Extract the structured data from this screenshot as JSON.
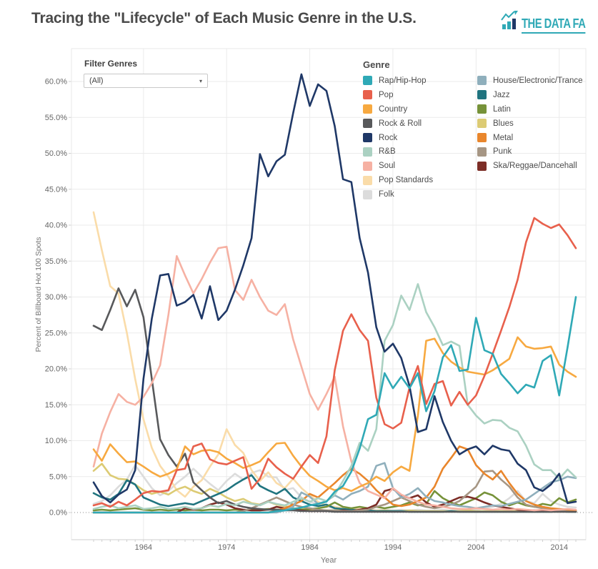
{
  "header": {
    "title": "Tracing the \"Lifecycle\" of Each Music Genre in the U.S.",
    "logo": {
      "text": "THE DATA FA",
      "color": "#2fa9b6"
    }
  },
  "filter": {
    "label": "Filter Genres",
    "value": "(All)",
    "caret": "▾"
  },
  "legend": {
    "title": "Genre",
    "columns": [
      [
        "Rap/Hip-Hop",
        "Pop",
        "Country",
        "Rock & Roll",
        "Rock",
        "R&B",
        "Soul",
        "Pop Standards",
        "Folk"
      ],
      [
        "House/Electronic/Trance",
        "Jazz",
        "Latin",
        "Blues",
        "Metal",
        "Punk",
        "Ska/Reggae/Dancehall"
      ]
    ]
  },
  "axes": {
    "y": {
      "title": "Percent of Billboard Hot 100 Spots",
      "ticks": [
        "0.0%",
        "5.0%",
        "10.0%",
        "15.0%",
        "20.0%",
        "25.0%",
        "30.0%",
        "35.0%",
        "40.0%",
        "45.0%",
        "50.0%",
        "55.0%",
        "60.0%"
      ],
      "min": 0,
      "max": 60,
      "step": 5
    },
    "x": {
      "title": "Year",
      "ticks": [
        1964,
        1974,
        1984,
        1994,
        2004,
        2014
      ],
      "range": [
        1958,
        2016
      ]
    }
  },
  "chart_data": {
    "type": "line",
    "title": "Tracing the \"Lifecycle\" of Each Music Genre in the U.S.",
    "xlabel": "Year",
    "ylabel": "Percent of Billboard Hot 100 Spots",
    "ylim": [
      0,
      62
    ],
    "grid": true,
    "legend_position": "top-right",
    "x": [
      1958,
      1959,
      1960,
      1961,
      1962,
      1963,
      1964,
      1965,
      1966,
      1967,
      1968,
      1969,
      1970,
      1971,
      1972,
      1973,
      1974,
      1975,
      1976,
      1977,
      1978,
      1979,
      1980,
      1981,
      1982,
      1983,
      1984,
      1985,
      1986,
      1987,
      1988,
      1989,
      1990,
      1991,
      1992,
      1993,
      1994,
      1995,
      1996,
      1997,
      1998,
      1999,
      2000,
      2001,
      2002,
      2003,
      2004,
      2005,
      2006,
      2007,
      2008,
      2009,
      2010,
      2011,
      2012,
      2013,
      2014,
      2015,
      2016
    ],
    "series": [
      {
        "name": "Rap/Hip-Hop",
        "color": "#2fa9b6",
        "values": [
          0,
          0,
          0,
          0,
          0,
          0,
          0,
          0,
          0,
          0,
          0,
          0,
          0,
          0,
          0,
          0,
          0,
          0,
          0,
          0,
          0,
          0,
          0.2,
          0.3,
          0.5,
          0.7,
          1,
          1.2,
          1.5,
          2.9,
          3.7,
          5.7,
          8.9,
          13,
          13.6,
          19.4,
          17.3,
          18.9,
          17.3,
          19.4,
          14.1,
          16.9,
          21.6,
          23.3,
          19.7,
          19.9,
          27.1,
          22.6,
          22.1,
          19.3,
          18,
          16.6,
          17.8,
          17.4,
          21.1,
          21.9,
          16.3,
          23,
          30
        ]
      },
      {
        "name": "Pop",
        "color": "#e8604c",
        "values": [
          1,
          1.3,
          0.8,
          1.5,
          1,
          1.8,
          2.7,
          3,
          2.9,
          3.1,
          5.9,
          6.1,
          9.2,
          9.6,
          7.4,
          6.9,
          6.7,
          7.2,
          7.7,
          3.3,
          4.7,
          7.5,
          6.3,
          5.4,
          4.7,
          6.4,
          8,
          6.9,
          10.6,
          19.8,
          25.3,
          27.6,
          25.4,
          23.9,
          16,
          12.3,
          11.7,
          12.5,
          17.4,
          20.4,
          15.1,
          17.9,
          18.3,
          14.9,
          16.8,
          15,
          16.3,
          19,
          22.1,
          25.3,
          28.6,
          32.4,
          37.6,
          41,
          40.2,
          39.6,
          40.1,
          38.6,
          36.8
        ]
      },
      {
        "name": "Country",
        "color": "#f7a940",
        "values": [
          8.8,
          7.2,
          9.5,
          8.2,
          7,
          7.1,
          6.4,
          5.6,
          5,
          5.4,
          6,
          9.2,
          8.1,
          8.6,
          8.7,
          8.4,
          7.5,
          6.9,
          6.2,
          6.6,
          7.1,
          8.4,
          9.6,
          9.7,
          7.9,
          6.4,
          5.1,
          4.4,
          3.6,
          3.1,
          3.4,
          3,
          3.6,
          4.1,
          5,
          4.4,
          5.6,
          6.4,
          5.8,
          13.5,
          23.9,
          24.2,
          22.2,
          21,
          20.2,
          19.6,
          19.4,
          19.2,
          19.8,
          20.6,
          21.4,
          24.4,
          23.1,
          22.8,
          22.9,
          23.1,
          20.6,
          19.6,
          18.9
        ]
      },
      {
        "name": "Rock & Roll",
        "color": "#58595b",
        "values": [
          26,
          25.4,
          28.2,
          31.2,
          28.7,
          31,
          27.2,
          18.6,
          10.2,
          8,
          6.4,
          8.2,
          4.2,
          3.1,
          2.1,
          1.3,
          1.6,
          1.1,
          0.8,
          0.6,
          0.5,
          0.4,
          0.4,
          0.3,
          0.3,
          0.2,
          0.2,
          0.2,
          0.2,
          0.1,
          0.1,
          0.1,
          0.1,
          0.1,
          0.1,
          0.1,
          0.1,
          0.1,
          0.1,
          0.1,
          0.1,
          0.1,
          0.1,
          0.1,
          0.1,
          0.1,
          0.1,
          0.1,
          0.1,
          0.1,
          0.1,
          0.1,
          0.1,
          0.1,
          0.1,
          0.1,
          0.1,
          0.1,
          0.1
        ]
      },
      {
        "name": "Rock",
        "color": "#1f3867",
        "values": [
          4.2,
          2.3,
          1.4,
          2.5,
          3.2,
          5.9,
          18.6,
          27,
          33,
          33.2,
          28.8,
          29.3,
          30.3,
          27,
          31.5,
          26.8,
          28.1,
          31,
          34.4,
          38.2,
          49.9,
          46.8,
          48.9,
          49.8,
          55.6,
          61,
          56.6,
          59.6,
          58.7,
          53.8,
          46.4,
          46,
          38.2,
          33.4,
          25.8,
          22.4,
          23.5,
          21.5,
          17.6,
          11.2,
          11.6,
          16.2,
          12.6,
          10,
          8.1,
          8.8,
          9.2,
          8.1,
          9.3,
          8.8,
          8.6,
          6.8,
          5.9,
          3.5,
          3,
          3.9,
          5.4,
          1.3,
          1.5
        ]
      },
      {
        "name": "R&B",
        "color": "#abd1c2",
        "values": [
          0.5,
          0.8,
          1,
          0.6,
          0.8,
          1,
          0.5,
          0.6,
          0.8,
          0.5,
          0.6,
          0.8,
          0.5,
          0.6,
          1,
          0.8,
          1.2,
          1,
          1.5,
          1.2,
          1,
          1.5,
          1.2,
          1,
          1.5,
          2,
          1.5,
          2,
          1.6,
          2.5,
          4.4,
          6.5,
          9.7,
          8.6,
          11.6,
          23.9,
          26.1,
          30.2,
          28.2,
          31.8,
          27.9,
          25.8,
          23.3,
          23.8,
          23.2,
          15,
          13.5,
          12.4,
          12.9,
          12.8,
          11.8,
          11.3,
          9.3,
          6.7,
          5.9,
          5.9,
          4.7,
          6,
          4.9
        ]
      },
      {
        "name": "Soul",
        "color": "#f6b1a3",
        "values": [
          6.4,
          11,
          14,
          16.5,
          15.4,
          15,
          16.1,
          18,
          20.5,
          27.5,
          35.7,
          33,
          30.5,
          32.5,
          34.8,
          36.8,
          37,
          31,
          29.6,
          32.4,
          30,
          28.1,
          27.5,
          29,
          24.1,
          20.3,
          16.5,
          14.3,
          16.5,
          18.9,
          12,
          7.1,
          4.1,
          3,
          2.5,
          2,
          3.4,
          2.5,
          2,
          1.5,
          1.1,
          1,
          0.8,
          0.6,
          0.5,
          0.5,
          0.6,
          0.5,
          0.4,
          0.5,
          0.4,
          0.5,
          0.4,
          0.3,
          0.4,
          0.3,
          0.4,
          0.5,
          0.4
        ]
      },
      {
        "name": "Pop Standards",
        "color": "#fadca9",
        "values": [
          41.8,
          36.5,
          31.5,
          30.5,
          25,
          18.6,
          13,
          9,
          6.5,
          5,
          3.1,
          2.2,
          3.6,
          4.5,
          6.4,
          8.1,
          11.6,
          9.4,
          8.3,
          5.9,
          4.4,
          5.6,
          4.1,
          3.4,
          4.7,
          3.4,
          2.4,
          1.5,
          1,
          0.8,
          0.6,
          0.5,
          0.5,
          0.4,
          0.3,
          0.3,
          0.2,
          0.2,
          0.2,
          0.2,
          0.1,
          0.1,
          0.1,
          0.1,
          0.1,
          0.1,
          0.1,
          0.1,
          0.1,
          0.1,
          0.1,
          0.1,
          0.1,
          0.1,
          0.1,
          0.1,
          0.1,
          0.1,
          0.1
        ]
      },
      {
        "name": "Folk",
        "color": "#dcdcdc",
        "values": [
          1.2,
          1.6,
          2.4,
          3.6,
          4.6,
          6.6,
          5,
          3.4,
          2.4,
          3,
          4.1,
          5,
          6.1,
          5,
          4,
          3.1,
          4.4,
          5.4,
          4.6,
          5.5,
          5.9,
          5,
          4.9,
          3.1,
          3.4,
          2.1,
          1.5,
          1.1,
          0.8,
          0.6,
          0.5,
          0.4,
          0.4,
          0.3,
          0.3,
          0.4,
          0.3,
          0.4,
          0.3,
          0.4,
          0.3,
          0.3,
          0.4,
          0.3,
          0.4,
          0.5,
          0.4,
          0.6,
          0.8,
          1.2,
          2,
          3,
          1.6,
          1.3,
          2.6,
          1.6,
          1.1,
          0.8,
          0.7
        ]
      },
      {
        "name": "House/Electronic/Trance",
        "color": "#8fafbc",
        "values": [
          0,
          0,
          0,
          0,
          0,
          0,
          0,
          0,
          0,
          0,
          0,
          0,
          0,
          0,
          0,
          0,
          0,
          0,
          0,
          0,
          0,
          0,
          0,
          0.3,
          0.8,
          2.8,
          2.2,
          1.2,
          1.6,
          2.4,
          1.8,
          2.6,
          3,
          3.6,
          6.5,
          6.9,
          3.4,
          2.1,
          2.6,
          3.4,
          2.2,
          1.6,
          1.4,
          1.1,
          0.9,
          0.8,
          0.6,
          0.8,
          1,
          0.9,
          1.2,
          1.5,
          1.8,
          2.6,
          3.4,
          4.2,
          4.5,
          5,
          4.8
        ]
      },
      {
        "name": "Jazz",
        "color": "#20747f",
        "values": [
          2.7,
          2.1,
          1.8,
          2.6,
          4.5,
          3.9,
          2.1,
          1.6,
          1.1,
          0.9,
          1.1,
          1.3,
          1.1,
          1.6,
          2.1,
          2.6,
          3.1,
          3.9,
          4.6,
          5.2,
          3.7,
          3.1,
          2.6,
          3.3,
          2.1,
          1.6,
          1.1,
          0.9,
          1.1,
          0.6,
          0.5,
          0.4,
          0.3,
          0.3,
          0.2,
          0.2,
          0.2,
          0.2,
          0.1,
          0.1,
          0.1,
          0.1,
          0.1,
          0.2,
          0.1,
          0.1,
          0.1,
          0.1,
          0.1,
          0.1,
          0.1,
          0.1,
          0.1,
          0.1,
          0.1,
          0.1,
          0.2,
          0.1,
          0.1
        ]
      },
      {
        "name": "Latin",
        "color": "#769239",
        "values": [
          0.3,
          0.4,
          0.3,
          0.4,
          0.5,
          0.6,
          0.4,
          0.3,
          0.4,
          0.3,
          0.4,
          0.3,
          0.4,
          0.3,
          0.4,
          0.4,
          0.3,
          0.4,
          0.3,
          0.4,
          0.4,
          0.5,
          0.4,
          0.4,
          0.5,
          0.4,
          0.5,
          0.6,
          0.8,
          1.4,
          0.8,
          0.6,
          0.8,
          0.6,
          0.8,
          0.6,
          0.8,
          1,
          1.4,
          1,
          1.2,
          3,
          2,
          1.4,
          1,
          1.5,
          2,
          2.8,
          2.4,
          1.5,
          1,
          1.4,
          1,
          0.8,
          1.2,
          1,
          2,
          1.4,
          1.8
        ]
      },
      {
        "name": "Blues",
        "color": "#dccb74",
        "values": [
          5.8,
          6.8,
          5.2,
          4.7,
          4.6,
          3.9,
          3.1,
          2.6,
          2.9,
          2.5,
          3.2,
          3.6,
          3,
          2.6,
          3.3,
          2.8,
          2.1,
          1.6,
          1.9,
          1.3,
          1.1,
          1.5,
          1.1,
          0.9,
          0.6,
          0.5,
          0.4,
          0.4,
          0.3,
          0.3,
          0.4,
          0.3,
          0.3,
          0.2,
          0.2,
          0.3,
          0.2,
          0.2,
          0.3,
          0.2,
          0.2,
          0.2,
          0.2,
          0.2,
          0.2,
          0.3,
          0.2,
          0.2,
          0.2,
          0.2,
          0.2,
          0.2,
          0.3,
          0.2,
          0.4,
          0.3,
          0.2,
          0.2,
          0.2
        ]
      },
      {
        "name": "Metal",
        "color": "#e9862c",
        "values": [
          0,
          0,
          0,
          0,
          0,
          0,
          0,
          0,
          0,
          0,
          0,
          0,
          0,
          0,
          0,
          0,
          0,
          0,
          0,
          0,
          0,
          0,
          0.3,
          0.6,
          1.1,
          1.6,
          2.6,
          2.1,
          3.1,
          4.1,
          5.2,
          6.1,
          5.4,
          4.4,
          3.1,
          2.1,
          1.1,
          0.9,
          1.1,
          1.6,
          2.1,
          3.6,
          6.1,
          7.6,
          9.2,
          8.8,
          6.6,
          5.4,
          4.6,
          5.8,
          4.1,
          2.6,
          1.6,
          1.1,
          0.8,
          0.6,
          0.5,
          0.4,
          0.3
        ]
      },
      {
        "name": "Punk",
        "color": "#a69684",
        "values": [
          0,
          0,
          0,
          0,
          0,
          0,
          0,
          0,
          0,
          0,
          0,
          0,
          0,
          0,
          0,
          0,
          0,
          0,
          0.2,
          0.6,
          1.1,
          1.6,
          2.1,
          1.6,
          1.1,
          0.8,
          0.6,
          0.4,
          0.3,
          0.3,
          0.2,
          0.2,
          0.3,
          0.4,
          0.8,
          1.1,
          1.6,
          2.1,
          1.6,
          1.1,
          0.8,
          0.6,
          0.8,
          1.1,
          1.6,
          2.6,
          3.6,
          5.7,
          5.8,
          4.6,
          3.6,
          2.1,
          1.1,
          0.8,
          0.6,
          0.4,
          0.3,
          0.3,
          0.2
        ]
      },
      {
        "name": "Ska/Reggae/Dancehall",
        "color": "#7c2d26",
        "values": [
          0,
          0,
          0,
          0,
          0,
          0,
          0,
          0,
          0,
          0,
          0,
          0.6,
          0.4,
          0.6,
          1.1,
          1.4,
          1.1,
          0.6,
          0.4,
          0.3,
          0.3,
          0.4,
          0.8,
          0.6,
          0.4,
          0.3,
          0.2,
          0.2,
          0.2,
          0.2,
          0.3,
          0.2,
          0.4,
          0.6,
          1.1,
          3,
          3.3,
          2.4,
          2,
          2.4,
          1.4,
          0.8,
          1.1,
          1.6,
          2.1,
          2.2,
          1.9,
          1.4,
          1,
          0.8,
          0.6,
          0.4,
          0.3,
          0.3,
          0.2,
          0.3,
          0.2,
          0.2,
          0.2
        ]
      }
    ]
  }
}
